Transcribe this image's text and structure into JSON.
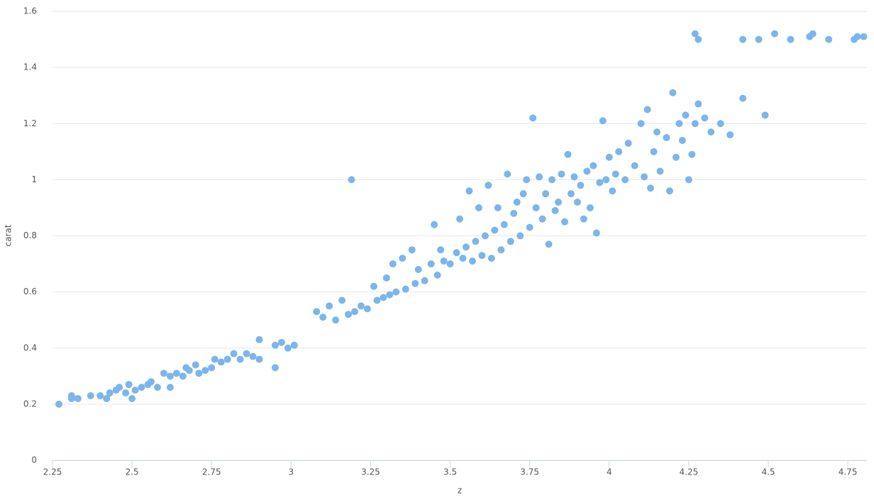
{
  "chart_data": {
    "type": "scatter",
    "x_label": "z",
    "y_label": "carat",
    "color": "#7cb5ec",
    "grid": true,
    "xlim": [
      2.25,
      4.81
    ],
    "ylim": [
      0,
      1.6
    ],
    "xticks": [
      2.25,
      2.5,
      2.75,
      3,
      3.25,
      3.5,
      3.75,
      4,
      4.25,
      4.5,
      4.75
    ],
    "yticks": [
      0,
      0.2,
      0.4,
      0.6,
      0.8,
      1,
      1.2,
      1.4,
      1.6
    ],
    "x": [
      2.27,
      2.31,
      2.31,
      2.33,
      2.37,
      2.4,
      2.42,
      2.43,
      2.45,
      2.46,
      2.48,
      2.49,
      2.5,
      2.51,
      2.53,
      2.55,
      2.56,
      2.58,
      2.6,
      2.62,
      2.62,
      2.64,
      2.66,
      2.67,
      2.68,
      2.7,
      2.71,
      2.73,
      2.75,
      2.76,
      2.78,
      2.8,
      2.82,
      2.84,
      2.86,
      2.88,
      2.9,
      2.9,
      2.95,
      2.95,
      2.97,
      2.99,
      3.01,
      3.08,
      3.1,
      3.12,
      3.14,
      3.16,
      3.18,
      3.19,
      3.2,
      3.22,
      3.24,
      3.26,
      3.27,
      3.29,
      3.3,
      3.31,
      3.32,
      3.33,
      3.35,
      3.36,
      3.38,
      3.39,
      3.4,
      3.42,
      3.44,
      3.45,
      3.46,
      3.47,
      3.48,
      3.5,
      3.52,
      3.53,
      3.54,
      3.55,
      3.56,
      3.57,
      3.58,
      3.59,
      3.6,
      3.61,
      3.62,
      3.63,
      3.64,
      3.65,
      3.66,
      3.67,
      3.68,
      3.69,
      3.7,
      3.71,
      3.72,
      3.73,
      3.74,
      3.75,
      3.76,
      3.77,
      3.78,
      3.79,
      3.8,
      3.81,
      3.82,
      3.83,
      3.84,
      3.85,
      3.86,
      3.87,
      3.88,
      3.89,
      3.9,
      3.91,
      3.92,
      3.93,
      3.94,
      3.95,
      3.96,
      3.97,
      3.98,
      3.99,
      4.0,
      4.01,
      4.02,
      4.03,
      4.05,
      4.06,
      4.08,
      4.1,
      4.11,
      4.12,
      4.13,
      4.14,
      4.15,
      4.16,
      4.18,
      4.19,
      4.2,
      4.21,
      4.22,
      4.23,
      4.24,
      4.25,
      4.26,
      4.27,
      4.28,
      4.3,
      4.32,
      4.35,
      4.38,
      4.27,
      4.28,
      4.42,
      4.42,
      4.47,
      4.49,
      4.52,
      4.57,
      4.63,
      4.64,
      4.69,
      4.77,
      4.78,
      4.8
    ],
    "values": [
      0.2,
      0.22,
      0.23,
      0.22,
      0.23,
      0.23,
      0.22,
      0.24,
      0.25,
      0.26,
      0.24,
      0.27,
      0.22,
      0.25,
      0.26,
      0.27,
      0.28,
      0.26,
      0.31,
      0.3,
      0.26,
      0.31,
      0.3,
      0.33,
      0.32,
      0.34,
      0.31,
      0.32,
      0.33,
      0.36,
      0.35,
      0.36,
      0.38,
      0.36,
      0.38,
      0.37,
      0.43,
      0.36,
      0.33,
      0.41,
      0.42,
      0.4,
      0.41,
      0.53,
      0.51,
      0.55,
      0.5,
      0.57,
      0.52,
      1.0,
      0.53,
      0.55,
      0.54,
      0.62,
      0.57,
      0.58,
      0.65,
      0.59,
      0.7,
      0.6,
      0.72,
      0.61,
      0.75,
      0.63,
      0.68,
      0.64,
      0.7,
      0.84,
      0.66,
      0.75,
      0.71,
      0.7,
      0.74,
      0.86,
      0.72,
      0.76,
      0.96,
      0.71,
      0.78,
      0.9,
      0.73,
      0.8,
      0.98,
      0.72,
      0.82,
      0.9,
      0.75,
      0.84,
      1.02,
      0.78,
      0.88,
      0.92,
      0.8,
      0.95,
      1.0,
      0.83,
      1.22,
      0.9,
      1.01,
      0.86,
      0.95,
      0.77,
      1.0,
      0.89,
      0.92,
      1.02,
      0.85,
      1.09,
      0.95,
      1.01,
      0.92,
      0.98,
      0.86,
      1.03,
      0.9,
      1.05,
      0.81,
      0.99,
      1.21,
      1.0,
      1.08,
      0.96,
      1.02,
      1.1,
      1.0,
      1.13,
      1.05,
      1.2,
      1.01,
      1.25,
      0.97,
      1.1,
      1.17,
      1.03,
      1.15,
      0.96,
      1.31,
      1.08,
      1.2,
      1.14,
      1.23,
      1.0,
      1.09,
      1.2,
      1.27,
      1.22,
      1.17,
      1.2,
      1.16,
      1.52,
      1.5,
      1.29,
      1.5,
      1.5,
      1.23,
      1.52,
      1.5,
      1.51,
      1.52,
      1.5,
      1.5,
      1.51,
      1.51
    ]
  }
}
